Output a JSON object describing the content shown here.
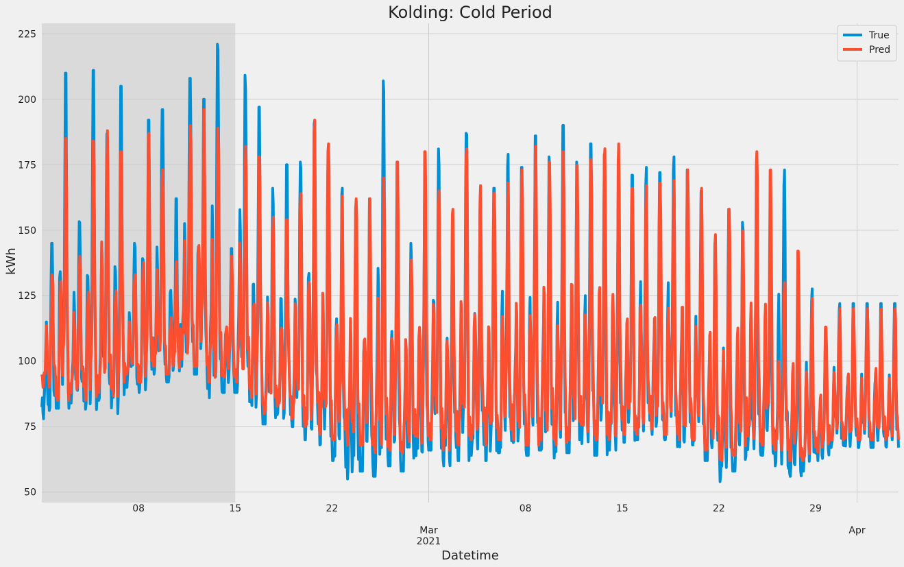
{
  "chart_data": {
    "type": "line",
    "title": "Kolding: Cold Period",
    "xlabel": "Datetime",
    "ylabel": "kWh",
    "ylim": [
      46,
      229
    ],
    "xlim": [
      "2021-02-01T00:00",
      "2021-04-04T00:00"
    ],
    "grid": true,
    "legend_position": "top-right",
    "highlight_region": {
      "start": "2021-02-01T00:00",
      "end": "2021-02-15T00:00"
    },
    "y_ticks": [
      50,
      75,
      100,
      125,
      150,
      175,
      200,
      225
    ],
    "x_ticks": [
      {
        "date": "2021-02-08",
        "label": "08"
      },
      {
        "date": "2021-02-15",
        "label": "15"
      },
      {
        "date": "2021-02-22",
        "label": "22"
      },
      {
        "date": "2021-03-01",
        "label": "Mar",
        "label2": "2021"
      },
      {
        "date": "2021-03-08",
        "label": "08"
      },
      {
        "date": "2021-03-15",
        "label": "15"
      },
      {
        "date": "2021-03-22",
        "label": "22"
      },
      {
        "date": "2021-03-29",
        "label": "29"
      },
      {
        "date": "2021-04-01",
        "label": "Apr"
      }
    ],
    "x_major_dates": [
      "2021-03-01",
      "2021-04-01"
    ],
    "series": [
      {
        "name": "True",
        "color": "#008fd5",
        "daily_peak": [
          145,
          210,
          156,
          211,
          190,
          205,
          145,
          192,
          196,
          162,
          208,
          200,
          221,
          143,
          211,
          197,
          166,
          175,
          176,
          192,
          178,
          166,
          150,
          162,
          207,
          176,
          145,
          168,
          181,
          155,
          187,
          162,
          166,
          179,
          174,
          186,
          178,
          190,
          176,
          183,
          179,
          165,
          171,
          174,
          172,
          178,
          173,
          165,
          145,
          158,
          153,
          150,
          149,
          173,
          120,
          128,
          112,
          122
        ],
        "daily_low": [
          78,
          82,
          84,
          81,
          85,
          80,
          90,
          88,
          95,
          92,
          98,
          95,
          86,
          88,
          88,
          80,
          76,
          78,
          75,
          70,
          68,
          62,
          55,
          58,
          56,
          60,
          58,
          62,
          66,
          60,
          62,
          64,
          62,
          65,
          67,
          64,
          66,
          63,
          65,
          68,
          64,
          66,
          69,
          70,
          72,
          70,
          66,
          68,
          62,
          54,
          58,
          66,
          64,
          60,
          56,
          58,
          62,
          67
        ]
      },
      {
        "name": "Pred",
        "color": "#fc4f30",
        "daily_peak": [
          133,
          185,
          140,
          184,
          188,
          180,
          133,
          187,
          173,
          138,
          190,
          196,
          189,
          140,
          182,
          178,
          155,
          154,
          164,
          192,
          183,
          163,
          162,
          162,
          170,
          176,
          140,
          180,
          166,
          158,
          181,
          167,
          164,
          168,
          173,
          182,
          176,
          180,
          178,
          177,
          182,
          183,
          166,
          167,
          168,
          169,
          173,
          166,
          149,
          158,
          152,
          180,
          173,
          130,
          142,
          124,
          113,
          120
        ],
        "daily_low": [
          90,
          85,
          88,
          85,
          88,
          86,
          95,
          92,
          98,
          95,
          100,
          98,
          92,
          94,
          92,
          86,
          80,
          82,
          78,
          75,
          72,
          70,
          68,
          68,
          65,
          66,
          65,
          68,
          70,
          66,
          68,
          70,
          68,
          70,
          70,
          68,
          70,
          68,
          70,
          72,
          70,
          70,
          72,
          72,
          74,
          72,
          70,
          70,
          66,
          62,
          64,
          70,
          68,
          66,
          62,
          62,
          65,
          70
        ]
      }
    ]
  }
}
